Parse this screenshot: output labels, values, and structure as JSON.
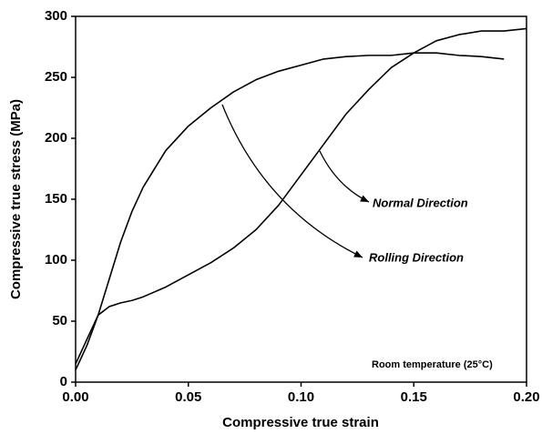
{
  "chart_data": {
    "type": "line",
    "xlabel": "Compressive true strain",
    "ylabel": "Compressive true stress (MPa)",
    "x": [
      0,
      0.005,
      0.01,
      0.015,
      0.02,
      0.025,
      0.03,
      0.04,
      0.05,
      0.06,
      0.07,
      0.08,
      0.09,
      0.1,
      0.11,
      0.12,
      0.13,
      0.14,
      0.15,
      0.16,
      0.17,
      0.18,
      0.19,
      0.2
    ],
    "series": [
      {
        "name": "Rolling Direction",
        "color": "#000000",
        "values": [
          10,
          30,
          55,
          85,
          115,
          140,
          160,
          190,
          210,
          225,
          238,
          248,
          255,
          260,
          265,
          267,
          268,
          268,
          270,
          270,
          268,
          267,
          265,
          null
        ]
      },
      {
        "name": "Normal Direction",
        "color": "#000000",
        "values": [
          15,
          35,
          55,
          62,
          65,
          67,
          70,
          78,
          88,
          98,
          110,
          125,
          145,
          170,
          195,
          220,
          240,
          258,
          270,
          280,
          285,
          288,
          288,
          290
        ]
      }
    ],
    "annotations": [
      "Room temperature (25°C)"
    ],
    "xlim": [
      0,
      0.2
    ],
    "xticks": [
      {
        "value": 0,
        "label": "0.00"
      },
      0.05,
      {
        "value": 0.1,
        "label": "0.10"
      },
      0.15,
      {
        "value": 0.2,
        "label": "0.20"
      }
    ],
    "ylim": [
      0,
      300
    ],
    "yticks": [
      0,
      50,
      100,
      150,
      200,
      250,
      300
    ],
    "grid": false
  }
}
